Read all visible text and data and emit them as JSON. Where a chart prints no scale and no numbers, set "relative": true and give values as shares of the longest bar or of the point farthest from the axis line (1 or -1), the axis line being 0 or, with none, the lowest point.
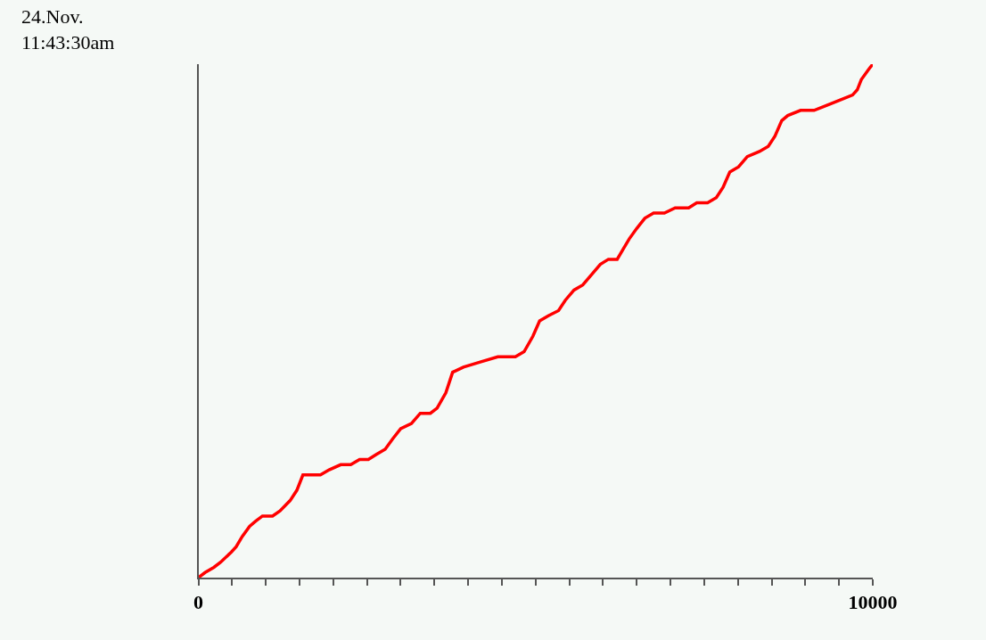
{
  "chart_data": [
    {
      "type": "line",
      "title": "24.Nov.\n11:43:30am",
      "relative": true,
      "xlim": [
        0,
        10000
      ],
      "xticks": [
        0,
        {
          "value": 500,
          "label": null
        },
        {
          "value": 1000,
          "label": null
        },
        {
          "value": 1500,
          "label": null
        },
        {
          "value": 2000,
          "label": null
        },
        {
          "value": 2500,
          "label": null
        },
        {
          "value": 3000,
          "label": null
        },
        {
          "value": 3500,
          "label": null
        },
        {
          "value": 4000,
          "label": null
        },
        {
          "value": 4500,
          "label": null
        },
        {
          "value": 5000,
          "label": null
        },
        {
          "value": 5500,
          "label": null
        },
        {
          "value": 6000,
          "label": null
        },
        {
          "value": 6500,
          "label": null
        },
        {
          "value": 7000,
          "label": null
        },
        {
          "value": 7500,
          "label": null
        },
        {
          "value": 8000,
          "label": null
        },
        {
          "value": 8500,
          "label": null
        },
        {
          "value": 9000,
          "label": null
        },
        {
          "value": 9500,
          "label": null
        },
        10000
      ],
      "x": [
        0,
        100,
        230,
        330,
        490,
        560,
        650,
        760,
        850,
        950,
        1100,
        1210,
        1360,
        1460,
        1550,
        1640,
        1810,
        1940,
        2110,
        2260,
        2390,
        2520,
        2640,
        2770,
        2880,
        3000,
        3160,
        3290,
        3440,
        3540,
        3670,
        3770,
        3930,
        4180,
        4440,
        4700,
        4830,
        4960,
        5060,
        5190,
        5340,
        5440,
        5570,
        5700,
        5830,
        5960,
        6080,
        6210,
        6300,
        6390,
        6500,
        6620,
        6750,
        6910,
        7070,
        7270,
        7390,
        7550,
        7680,
        7780,
        7880,
        8010,
        8140,
        8320,
        8450,
        8550,
        8650,
        8740,
        8930,
        9130,
        9320,
        9510,
        9700,
        9770,
        9830,
        9940,
        10000
      ],
      "series": [
        {
          "color": "#ff0000",
          "values": [
            0.0,
            0.01,
            0.02,
            0.03,
            0.05,
            0.06,
            0.08,
            0.1,
            0.11,
            0.12,
            0.12,
            0.13,
            0.15,
            0.17,
            0.2,
            0.2,
            0.2,
            0.21,
            0.22,
            0.22,
            0.23,
            0.23,
            0.24,
            0.25,
            0.27,
            0.29,
            0.3,
            0.32,
            0.32,
            0.33,
            0.36,
            0.4,
            0.41,
            0.42,
            0.43,
            0.43,
            0.44,
            0.47,
            0.5,
            0.51,
            0.52,
            0.54,
            0.56,
            0.57,
            0.59,
            0.61,
            0.62,
            0.62,
            0.64,
            0.66,
            0.68,
            0.7,
            0.71,
            0.71,
            0.72,
            0.72,
            0.73,
            0.73,
            0.74,
            0.76,
            0.79,
            0.8,
            0.82,
            0.83,
            0.84,
            0.86,
            0.89,
            0.9,
            0.91,
            0.91,
            0.92,
            0.93,
            0.94,
            0.95,
            0.97,
            0.99,
            1.0
          ]
        }
      ],
      "tick_labels": "x",
      "grid": false,
      "marker": "none",
      "line_style": "solid"
    }
  ]
}
